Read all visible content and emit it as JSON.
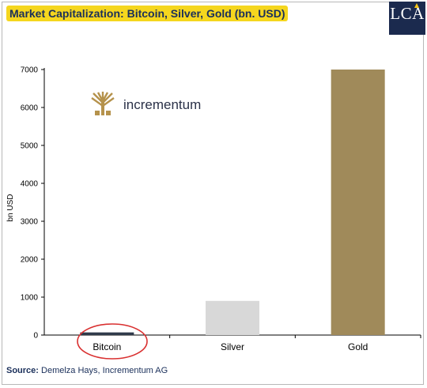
{
  "header": {
    "title": "Market Capitalization: Bitcoin, Silver, Gold (bn. USD)",
    "watermark": "LCA"
  },
  "logo": {
    "text": "incrementum",
    "icon": "tree-icon",
    "color": "#b5924c"
  },
  "source": {
    "label": "Source:",
    "text": " Demelza Hays, Incrementum AG"
  },
  "colors": {
    "bitcoin": "#2f3a4a",
    "silver": "#d8d8d8",
    "gold": "#a08a5a",
    "highlight": "#d93030",
    "title_bg": "#f5d61e"
  },
  "chart_data": {
    "type": "bar",
    "categories": [
      "Bitcoin",
      "Silver",
      "Gold"
    ],
    "values": [
      70,
      900,
      7000
    ],
    "ylabel": "bn USD",
    "ylim": [
      0,
      7000
    ],
    "yticks": [
      0,
      1000,
      2000,
      3000,
      4000,
      5000,
      6000,
      7000
    ],
    "grid": false,
    "highlight": "Bitcoin"
  }
}
